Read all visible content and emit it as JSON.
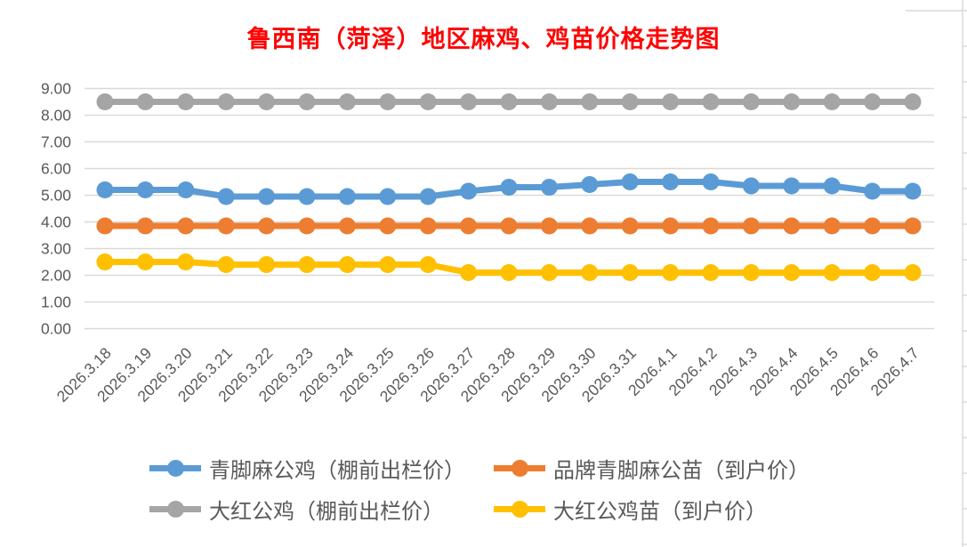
{
  "chart_data": {
    "type": "line",
    "title": "鲁西南（菏泽）地区麻鸡、鸡苗价格走势图",
    "title_color": "#FF0000",
    "x": [
      "2026.3.18",
      "2026.3.19",
      "2026.3.20",
      "2026.3.21",
      "2026.3.22",
      "2026.3.23",
      "2026.3.24",
      "2026.3.25",
      "2026.3.26",
      "2026.3.27",
      "2026.3.28",
      "2026.3.29",
      "2026.3.30",
      "2026.3.31",
      "2026.4.1",
      "2026.4.2",
      "2026.4.3",
      "2026.4.4",
      "2026.4.5",
      "2026.4.6",
      "2026.4.7"
    ],
    "series": [
      {
        "name": "青脚麻公鸡（棚前出栏价）",
        "color": "#5B9BD5",
        "values": [
          5.2,
          5.2,
          5.2,
          4.95,
          4.95,
          4.95,
          4.95,
          4.95,
          4.95,
          5.15,
          5.3,
          5.3,
          5.4,
          5.5,
          5.5,
          5.5,
          5.35,
          5.35,
          5.35,
          5.15,
          5.15
        ]
      },
      {
        "name": "品牌青脚麻公苗（到户价）",
        "color": "#ED7D31",
        "values": [
          3.85,
          3.85,
          3.85,
          3.85,
          3.85,
          3.85,
          3.85,
          3.85,
          3.85,
          3.85,
          3.85,
          3.85,
          3.85,
          3.85,
          3.85,
          3.85,
          3.85,
          3.85,
          3.85,
          3.85,
          3.85
        ]
      },
      {
        "name": "大红公鸡（棚前出栏价）",
        "color": "#A5A5A5",
        "values": [
          8.5,
          8.5,
          8.5,
          8.5,
          8.5,
          8.5,
          8.5,
          8.5,
          8.5,
          8.5,
          8.5,
          8.5,
          8.5,
          8.5,
          8.5,
          8.5,
          8.5,
          8.5,
          8.5,
          8.5,
          8.5
        ]
      },
      {
        "name": "大红公鸡苗（到户价）",
        "color": "#FFC000",
        "values": [
          2.5,
          2.5,
          2.5,
          2.4,
          2.4,
          2.4,
          2.4,
          2.4,
          2.4,
          2.1,
          2.1,
          2.1,
          2.1,
          2.1,
          2.1,
          2.1,
          2.1,
          2.1,
          2.1,
          2.1,
          2.1
        ]
      }
    ],
    "ylim": [
      0,
      9
    ],
    "ytick_step": 1,
    "ytick_decimals": 2,
    "grid": true,
    "gridline_color": "#D9D9D9",
    "axis_text_color": "#595959",
    "legend_position": "bottom",
    "legend_rows": [
      [
        0,
        1
      ],
      [
        2,
        3
      ]
    ]
  }
}
